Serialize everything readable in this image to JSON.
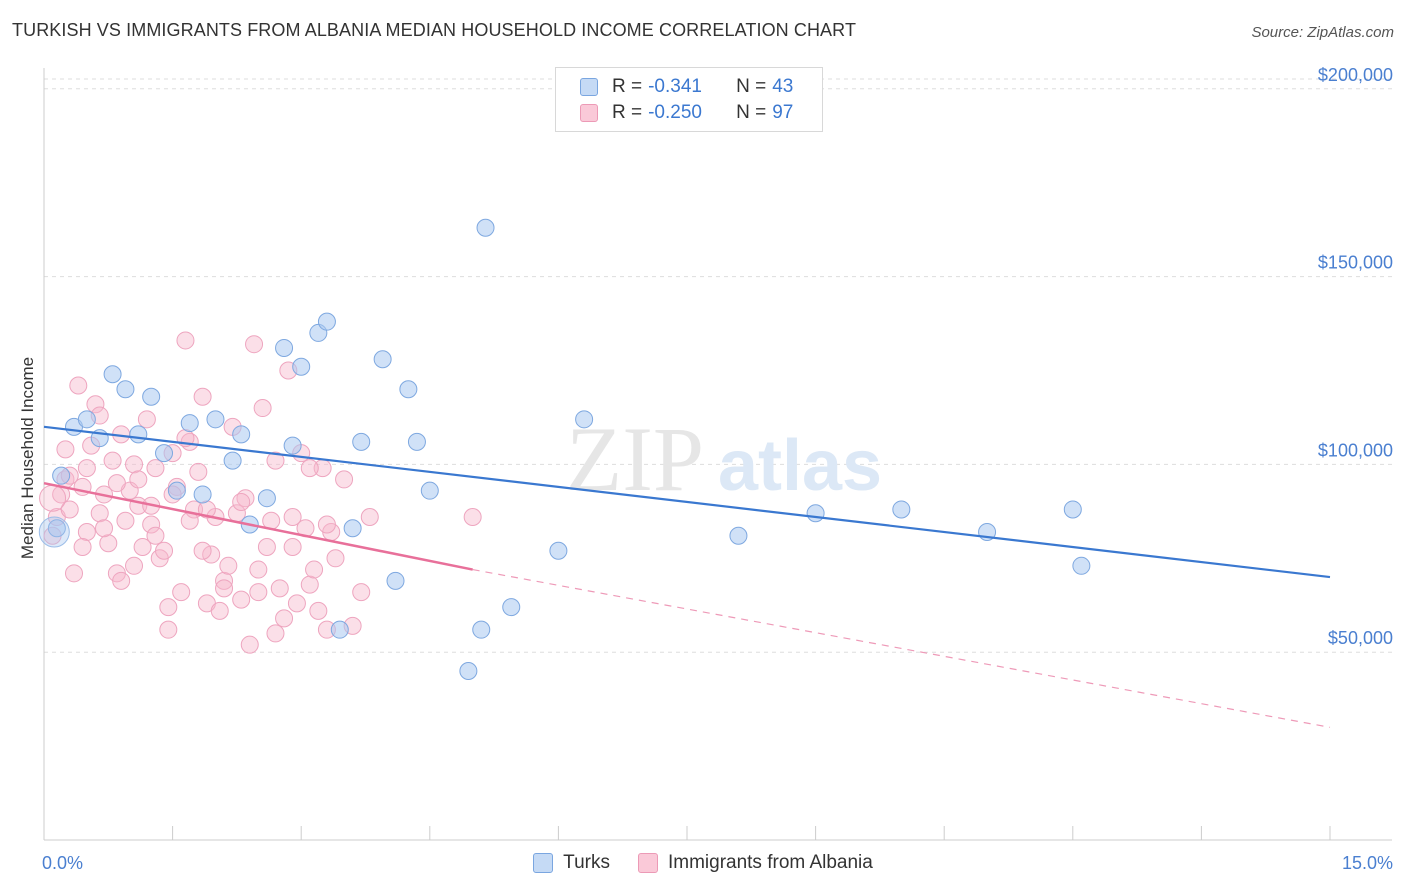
{
  "title": "TURKISH VS IMMIGRANTS FROM ALBANIA MEDIAN HOUSEHOLD INCOME CORRELATION CHART",
  "source": "Source: ZipAtlas.com",
  "watermark": {
    "zip": "ZIP",
    "atlas": "atlas"
  },
  "colors": {
    "turks": "#a9c8f0",
    "turks_line": "#3a78d0",
    "albania": "#f6b8cc",
    "albania_line": "#e8709a",
    "axis_text": "#4a7fd0"
  },
  "legend": {
    "rows": [
      {
        "r_label": "R = ",
        "r_value": "-0.341",
        "n_label": "N = ",
        "n_value": "43"
      },
      {
        "r_label": "R = ",
        "r_value": "-0.250",
        "n_label": "N = ",
        "n_value": "97"
      }
    ],
    "series_names": [
      "Turks",
      "Immigrants from Albania"
    ]
  },
  "chart_data": {
    "type": "scatter",
    "title": "TURKISH VS IMMIGRANTS FROM ALBANIA MEDIAN HOUSEHOLD INCOME CORRELATION CHART",
    "xlabel": "",
    "ylabel": "Median Household Income",
    "xlim": [
      0,
      15
    ],
    "ylim": [
      0,
      205000
    ],
    "x_tick_labels": [
      "0.0%",
      "15.0%"
    ],
    "y_ticks": [
      50000,
      100000,
      150000,
      200000
    ],
    "y_tick_labels": [
      "$50,000",
      "$100,000",
      "$150,000",
      "$200,000"
    ],
    "grid": "horizontal dashed",
    "legend_position": "top-center",
    "series": [
      {
        "name": "Turks",
        "color": "#a9c8f0",
        "trend": {
          "x": [
            0.0,
            15.0
          ],
          "y": [
            110000,
            70000
          ],
          "style": "solid"
        },
        "points": [
          [
            0.15,
            83000
          ],
          [
            0.2,
            97000
          ],
          [
            0.35,
            110000
          ],
          [
            0.5,
            112000
          ],
          [
            0.65,
            107000
          ],
          [
            0.8,
            124000
          ],
          [
            0.95,
            120000
          ],
          [
            1.1,
            108000
          ],
          [
            1.25,
            118000
          ],
          [
            1.4,
            103000
          ],
          [
            1.55,
            93000
          ],
          [
            1.7,
            111000
          ],
          [
            1.85,
            92000
          ],
          [
            2.0,
            112000
          ],
          [
            2.2,
            101000
          ],
          [
            2.3,
            108000
          ],
          [
            2.4,
            84000
          ],
          [
            2.6,
            91000
          ],
          [
            2.8,
            131000
          ],
          [
            2.9,
            105000
          ],
          [
            3.0,
            126000
          ],
          [
            3.2,
            135000
          ],
          [
            3.3,
            138000
          ],
          [
            3.45,
            56000
          ],
          [
            3.6,
            83000
          ],
          [
            3.7,
            106000
          ],
          [
            3.95,
            128000
          ],
          [
            4.1,
            69000
          ],
          [
            4.25,
            120000
          ],
          [
            4.35,
            106000
          ],
          [
            4.5,
            93000
          ],
          [
            4.95,
            45000
          ],
          [
            5.1,
            56000
          ],
          [
            5.15,
            163000
          ],
          [
            5.45,
            62000
          ],
          [
            6.0,
            77000
          ],
          [
            6.3,
            112000
          ],
          [
            8.1,
            81000
          ],
          [
            9.0,
            87000
          ],
          [
            10.0,
            88000
          ],
          [
            11.0,
            82000
          ],
          [
            12.0,
            88000
          ],
          [
            12.1,
            73000
          ]
        ]
      },
      {
        "name": "Immigrants from Albania",
        "color": "#f6b8cc",
        "trend": {
          "x": [
            0.0,
            5.0
          ],
          "y": [
            95000,
            72000
          ],
          "style": "solid",
          "extended": {
            "x": [
              5.0,
              15.0
            ],
            "y": [
              72000,
              30000
            ],
            "style": "dashed"
          }
        },
        "points": [
          [
            0.1,
            81000
          ],
          [
            0.15,
            86000
          ],
          [
            0.2,
            92000
          ],
          [
            0.25,
            96000
          ],
          [
            0.3,
            88000
          ],
          [
            0.35,
            71000
          ],
          [
            0.4,
            121000
          ],
          [
            0.45,
            94000
          ],
          [
            0.5,
            99000
          ],
          [
            0.55,
            105000
          ],
          [
            0.6,
            116000
          ],
          [
            0.65,
            87000
          ],
          [
            0.7,
            92000
          ],
          [
            0.75,
            79000
          ],
          [
            0.8,
            101000
          ],
          [
            0.85,
            71000
          ],
          [
            0.9,
            69000
          ],
          [
            0.95,
            85000
          ],
          [
            1.0,
            93000
          ],
          [
            1.05,
            100000
          ],
          [
            1.1,
            89000
          ],
          [
            1.15,
            78000
          ],
          [
            1.2,
            112000
          ],
          [
            1.25,
            84000
          ],
          [
            1.3,
            99000
          ],
          [
            1.35,
            75000
          ],
          [
            1.4,
            77000
          ],
          [
            1.45,
            56000
          ],
          [
            1.5,
            103000
          ],
          [
            1.55,
            94000
          ],
          [
            1.6,
            66000
          ],
          [
            1.65,
            133000
          ],
          [
            1.7,
            106000
          ],
          [
            1.75,
            88000
          ],
          [
            1.8,
            98000
          ],
          [
            1.85,
            118000
          ],
          [
            1.9,
            63000
          ],
          [
            1.95,
            76000
          ],
          [
            2.0,
            86000
          ],
          [
            2.05,
            61000
          ],
          [
            2.1,
            69000
          ],
          [
            2.15,
            73000
          ],
          [
            2.2,
            110000
          ],
          [
            2.25,
            87000
          ],
          [
            2.3,
            64000
          ],
          [
            2.35,
            91000
          ],
          [
            2.4,
            52000
          ],
          [
            2.45,
            132000
          ],
          [
            2.5,
            66000
          ],
          [
            2.55,
            115000
          ],
          [
            2.6,
            78000
          ],
          [
            2.65,
            85000
          ],
          [
            2.7,
            101000
          ],
          [
            2.75,
            67000
          ],
          [
            2.8,
            59000
          ],
          [
            2.85,
            125000
          ],
          [
            2.9,
            86000
          ],
          [
            2.95,
            63000
          ],
          [
            3.0,
            103000
          ],
          [
            3.05,
            83000
          ],
          [
            3.1,
            68000
          ],
          [
            3.15,
            72000
          ],
          [
            3.2,
            61000
          ],
          [
            3.25,
            99000
          ],
          [
            3.3,
            56000
          ],
          [
            3.35,
            82000
          ],
          [
            3.4,
            75000
          ],
          [
            3.5,
            96000
          ],
          [
            3.6,
            57000
          ],
          [
            3.7,
            66000
          ],
          [
            3.8,
            86000
          ],
          [
            0.3,
            97000
          ],
          [
            0.5,
            82000
          ],
          [
            0.7,
            83000
          ],
          [
            0.9,
            108000
          ],
          [
            1.1,
            96000
          ],
          [
            1.3,
            81000
          ],
          [
            1.5,
            92000
          ],
          [
            1.7,
            85000
          ],
          [
            1.9,
            88000
          ],
          [
            2.1,
            67000
          ],
          [
            2.3,
            90000
          ],
          [
            2.5,
            72000
          ],
          [
            2.7,
            55000
          ],
          [
            2.9,
            78000
          ],
          [
            3.1,
            99000
          ],
          [
            3.3,
            84000
          ],
          [
            0.25,
            104000
          ],
          [
            0.45,
            78000
          ],
          [
            0.65,
            113000
          ],
          [
            0.85,
            95000
          ],
          [
            1.05,
            73000
          ],
          [
            1.25,
            89000
          ],
          [
            1.45,
            62000
          ],
          [
            1.65,
            107000
          ],
          [
            1.85,
            77000
          ],
          [
            5.0,
            86000
          ]
        ]
      }
    ]
  }
}
